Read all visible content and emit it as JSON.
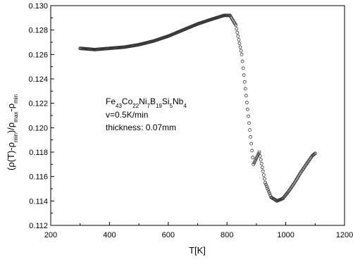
{
  "chart_data": {
    "type": "scatter",
    "title": "",
    "xlabel": "T[K]",
    "ylabel_parts": [
      {
        "text": "(ρ(T)-ρ",
        "sub": false
      },
      {
        "text": "min",
        "sub": true
      },
      {
        "text": ")/ρ",
        "sub": false
      },
      {
        "text": "max",
        "sub": true
      },
      {
        "text": "-ρ",
        "sub": false
      },
      {
        "text": "min",
        "sub": true
      }
    ],
    "xlim": [
      200,
      1200
    ],
    "ylim": [
      0.112,
      0.13
    ],
    "xticks": [
      200,
      400,
      600,
      800,
      1000,
      1200
    ],
    "yticks": [
      0.112,
      0.114,
      0.116,
      0.118,
      0.12,
      0.122,
      0.124,
      0.126,
      0.128,
      0.13
    ],
    "ytick_labels": [
      "0.112",
      "0.114",
      "0.116",
      "0.118",
      "0.120",
      "0.122",
      "0.124",
      "0.126",
      "0.128",
      "0.130"
    ],
    "grid": false,
    "marker": "open-circle",
    "marker_color": "#333333",
    "annotation": {
      "formula_parts": [
        {
          "text": "Fe",
          "sub": false
        },
        {
          "text": "43",
          "sub": true
        },
        {
          "text": "Co",
          "sub": false
        },
        {
          "text": "22",
          "sub": true
        },
        {
          "text": "Ni",
          "sub": false
        },
        {
          "text": "7",
          "sub": true
        },
        {
          "text": "B",
          "sub": false
        },
        {
          "text": "19",
          "sub": true
        },
        {
          "text": "Si",
          "sub": false
        },
        {
          "text": "5",
          "sub": true
        },
        {
          "text": "Nb",
          "sub": false
        },
        {
          "text": "4",
          "sub": true
        }
      ],
      "lines": [
        "v=0.5K/min",
        "thickness: 0.07mm"
      ],
      "position": "center-left"
    },
    "series": [
      {
        "curve_points": [
          [
            300,
            0.1265
          ],
          [
            350,
            0.1264
          ],
          [
            400,
            0.1265
          ],
          [
            450,
            0.1266
          ],
          [
            500,
            0.1268
          ],
          [
            550,
            0.1271
          ],
          [
            600,
            0.1275
          ],
          [
            650,
            0.128
          ],
          [
            700,
            0.1285
          ],
          [
            750,
            0.1289
          ],
          [
            790,
            0.1292
          ],
          [
            810,
            0.1292
          ],
          [
            830,
            0.1284
          ],
          [
            850,
            0.126
          ],
          [
            870,
            0.1215
          ],
          [
            890,
            0.117
          ],
          [
            910,
            0.118
          ],
          [
            930,
            0.1155
          ],
          [
            950,
            0.1143
          ],
          [
            970,
            0.114
          ],
          [
            990,
            0.1142
          ],
          [
            1010,
            0.1148
          ],
          [
            1030,
            0.1155
          ],
          [
            1050,
            0.1163
          ],
          [
            1070,
            0.117
          ],
          [
            1090,
            0.1177
          ],
          [
            1100,
            0.1179
          ]
        ]
      }
    ]
  }
}
